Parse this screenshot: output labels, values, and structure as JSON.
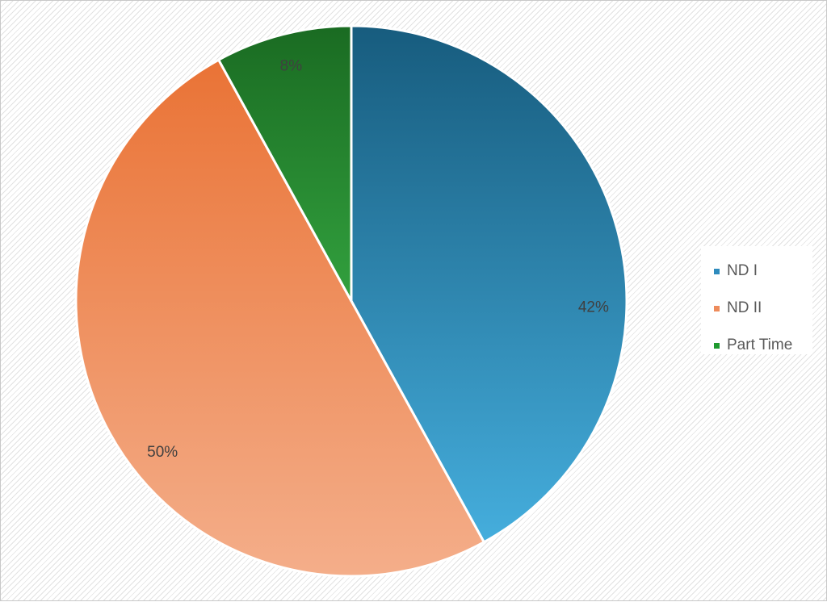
{
  "chart_data": {
    "type": "pie",
    "title": "",
    "categories": [
      "ND I",
      "ND II",
      "Part Time"
    ],
    "values": [
      42,
      50,
      8
    ],
    "data_labels": [
      "42%",
      "50%",
      "8%"
    ],
    "start_angle_deg": 0,
    "direction": "clockwise",
    "legend": "right",
    "colors": [
      {
        "top": "#175c7e",
        "bottom": "#48b3e3"
      },
      {
        "top": "#e96f30",
        "bottom": "#f4ae8a"
      },
      {
        "top": "#1a6b22",
        "bottom": "#4ad65a"
      }
    ],
    "legend_colors": [
      "#2e8bbd",
      "#ee8c5c",
      "#1f9a2f"
    ],
    "label_color": "#404040",
    "slice_border": "#ffffff"
  }
}
